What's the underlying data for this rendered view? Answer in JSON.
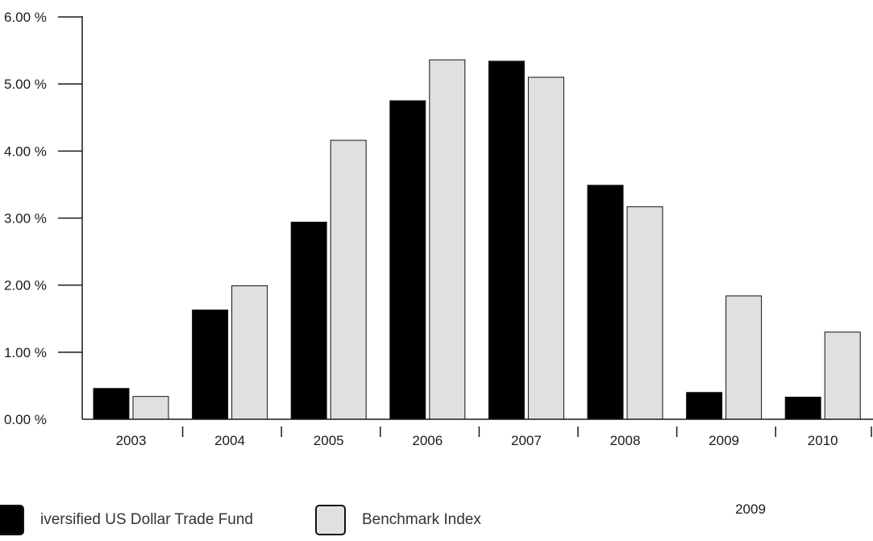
{
  "colors": {
    "fund": "#000000",
    "benchmark": "#e0e0e2",
    "axis": "#1a1a1a",
    "bar_stroke": "#111111"
  },
  "legend": {
    "fund_label": "iversified US Dollar Trade Fund",
    "benchmark_label": "Benchmark Index"
  },
  "footnote": "2009",
  "chart_data": {
    "type": "bar",
    "title": "",
    "xlabel": "",
    "ylabel": "",
    "categories": [
      "2003",
      "2004",
      "2005",
      "2006",
      "2007",
      "2008",
      "2009",
      "2010"
    ],
    "series": [
      {
        "name": "iversified US Dollar Trade Fund",
        "values": [
          0.46,
          1.63,
          2.94,
          4.75,
          5.34,
          3.49,
          0.4,
          0.33
        ]
      },
      {
        "name": "Benchmark Index",
        "values": [
          0.34,
          1.99,
          4.16,
          5.36,
          5.1,
          3.17,
          1.84,
          1.3
        ]
      }
    ],
    "ylim": [
      0,
      6
    ],
    "yticks": [
      "0.00 %",
      "1.00 %",
      "2.00 %",
      "3.00 %",
      "4.00 %",
      "5.00 %",
      "6.00 %"
    ],
    "grid": false,
    "legend_position": "bottom-left"
  }
}
